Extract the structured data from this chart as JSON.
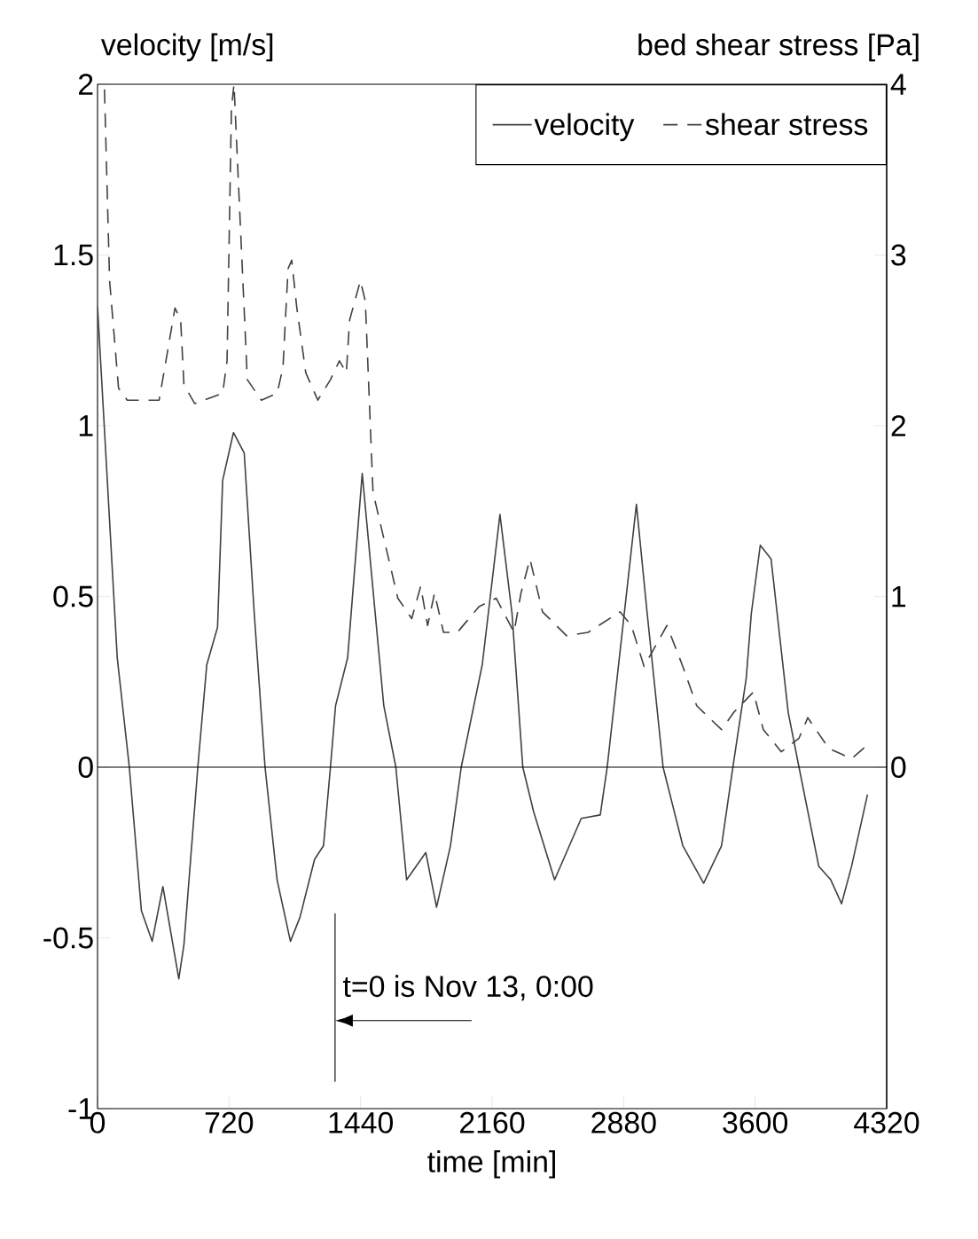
{
  "chart_data": {
    "type": "line",
    "xlabel": "time [min]",
    "ylabel": "velocity [m/s]",
    "y2label": "bed shear stress [Pa]",
    "xlim": [
      0,
      4320
    ],
    "ylim": [
      -1,
      2
    ],
    "y2lim": [
      -2,
      4
    ],
    "xticks": [
      0,
      720,
      1440,
      2160,
      2880,
      3600,
      4320
    ],
    "yticks": [
      -1,
      -0.5,
      0,
      0.5,
      1,
      1.5,
      2
    ],
    "y2ticks": [
      0,
      1,
      2,
      3,
      4
    ],
    "legend": "top right",
    "ref_lines": [
      {
        "axis": "y",
        "value": 0,
        "color": "#000000"
      }
    ],
    "annotations": [
      "t=0 is Nov 13, 0:00"
    ],
    "series": [
      {
        "name": "velocity",
        "color": "#404040",
        "line_style": "solid",
        "x": [
          0,
          108,
          174,
          240,
          299,
          358,
          445,
          473,
          549,
          598,
          657,
          685,
          744,
          803,
          858,
          917,
          983,
          1056,
          1108,
          1188,
          1237,
          1275,
          1303,
          1369,
          1449,
          1567,
          1633,
          1692,
          1797,
          1856,
          1932,
          1991,
          2106,
          2203,
          2269,
          2328,
          2387,
          2502,
          2648,
          2752,
          2790,
          2950,
          3009,
          3096,
          3204,
          3318,
          3416,
          3478,
          3551,
          3579,
          3628,
          3687,
          3781,
          3840,
          3948,
          4014,
          4073,
          4128,
          4215
        ],
        "values": [
          1.35,
          0.32,
          0,
          -0.42,
          -0.51,
          -0.35,
          -0.62,
          -0.52,
          0,
          0.3,
          0.41,
          0.84,
          0.98,
          0.92,
          0.45,
          0,
          -0.33,
          -0.51,
          -0.44,
          -0.27,
          -0.23,
          0,
          0.18,
          0.32,
          0.86,
          0.18,
          0,
          -0.33,
          -0.25,
          -0.41,
          -0.23,
          0,
          0.3,
          0.74,
          0.45,
          0,
          -0.13,
          -0.33,
          -0.15,
          -0.14,
          0,
          0.77,
          0.45,
          0,
          -0.23,
          -0.34,
          -0.23,
          0,
          0.26,
          0.45,
          0.65,
          0.61,
          0.16,
          0,
          -0.29,
          -0.33,
          -0.4,
          -0.29,
          -0.08
        ]
      },
      {
        "name": "shear stress",
        "color": "#404040",
        "line_style": "dashed",
        "axis": "y2",
        "x": [
          38,
          66,
          115,
          163,
          337,
          368,
          424,
          455,
          473,
          532,
          685,
          709,
          733,
          747,
          820,
          897,
          983,
          1015,
          1043,
          1063,
          1091,
          1140,
          1206,
          1275,
          1324,
          1362,
          1380,
          1439,
          1466,
          1508,
          1644,
          1720,
          1769,
          1807,
          1845,
          1894,
          1970,
          2088,
          2182,
          2280,
          2318,
          2367,
          2436,
          2568,
          2686,
          2860,
          2922,
          2992,
          3117,
          3204,
          3280,
          3416,
          3482,
          3590,
          3645,
          3743,
          3840,
          3888,
          4003,
          4128,
          4215
        ],
        "values": [
          3.97,
          2.85,
          2.22,
          2.15,
          2.15,
          2.34,
          2.69,
          2.62,
          2.24,
          2.13,
          2.19,
          2.38,
          3.86,
          4.0,
          2.27,
          2.15,
          2.19,
          2.34,
          2.92,
          2.97,
          2.69,
          2.31,
          2.15,
          2.27,
          2.38,
          2.31,
          2.62,
          2.85,
          2.73,
          1.61,
          0.99,
          0.87,
          1.06,
          0.83,
          1.02,
          0.79,
          0.79,
          0.94,
          0.99,
          0.79,
          1.02,
          1.22,
          0.91,
          0.77,
          0.79,
          0.91,
          0.83,
          0.59,
          0.83,
          0.59,
          0.36,
          0.22,
          0.32,
          0.44,
          0.22,
          0.09,
          0.17,
          0.29,
          0.11,
          0.05,
          0.13
        ]
      }
    ]
  }
}
